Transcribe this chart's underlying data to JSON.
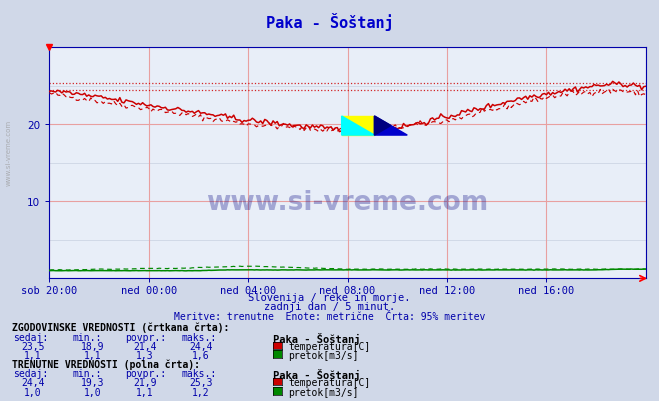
{
  "title": "Paka - Šoštanj",
  "title_color": "#0000cc",
  "bg_color": "#d0d8e8",
  "plot_bg_color": "#e8eef8",
  "grid_color_minor": "#c8d0e0",
  "grid_color_major": "#e8a0a0",
  "subtitle1": "Slovenija / reke in morje.",
  "subtitle2": "zadnji dan / 5 minut.",
  "subtitle3": "Meritve: trenutne  Enote: metrične  Črta: 95% meritev",
  "xlabel_ticks": [
    "sob 20:00",
    "ned 00:00",
    "ned 04:00",
    "ned 08:00",
    "ned 12:00",
    "ned 16:00"
  ],
  "ylim": [
    0,
    30
  ],
  "yticks": [
    10,
    20
  ],
  "n_points": 289,
  "temp_color": "#cc0000",
  "pretok_color": "#008800",
  "watermark_color": "#000080",
  "text_color": "#0000aa",
  "label_color": "#0000aa",
  "axis_color": "#0000aa",
  "hist_temp_line": [
    24.0,
    23.5,
    23.0,
    22.5,
    22.0,
    21.5,
    21.0,
    20.5,
    20.0,
    19.8,
    19.5,
    19.3,
    19.3,
    19.4,
    19.6,
    20.0,
    20.5,
    21.2,
    22.0,
    22.8,
    23.5,
    24.0,
    24.2,
    24.4,
    23.8
  ],
  "curr_temp_line": [
    24.4,
    24.0,
    23.5,
    23.0,
    22.5,
    22.0,
    21.5,
    21.0,
    20.5,
    20.2,
    19.8,
    19.5,
    19.3,
    19.4,
    19.6,
    20.2,
    21.0,
    21.8,
    22.6,
    23.4,
    24.0,
    24.5,
    25.0,
    25.3,
    24.8
  ],
  "hist_pretok_line": [
    1.1,
    1.1,
    1.2,
    1.2,
    1.3,
    1.3,
    1.4,
    1.5,
    1.6,
    1.5,
    1.4,
    1.3,
    1.2,
    1.2,
    1.2,
    1.2,
    1.2,
    1.2,
    1.2,
    1.2,
    1.2,
    1.2,
    1.2,
    1.2,
    1.2
  ],
  "curr_pretok_line": [
    1.0,
    1.0,
    1.0,
    1.0,
    1.0,
    1.0,
    1.0,
    1.1,
    1.1,
    1.1,
    1.1,
    1.1,
    1.1,
    1.1,
    1.1,
    1.1,
    1.1,
    1.1,
    1.1,
    1.1,
    1.1,
    1.1,
    1.1,
    1.2,
    1.2
  ],
  "hist_max_dotted": 24.4,
  "curr_max_dotted": 25.3,
  "stat_hist_sedaj": "23,5",
  "stat_hist_min": "18,9",
  "stat_hist_povpr": "21,4",
  "stat_hist_maks": "24,4",
  "stat_curr_sedaj": "24,4",
  "stat_curr_min": "19,3",
  "stat_curr_povpr": "21,9",
  "stat_curr_maks": "25,3",
  "stat_pretok_hist_sedaj": "1,1",
  "stat_pretok_hist_min": "1,1",
  "stat_pretok_hist_povpr": "1,3",
  "stat_pretok_hist_maks": "1,6",
  "stat_pretok_curr_sedaj": "1,0",
  "stat_pretok_curr_min": "1,0",
  "stat_pretok_curr_povpr": "1,1",
  "stat_pretok_curr_maks": "1,2"
}
